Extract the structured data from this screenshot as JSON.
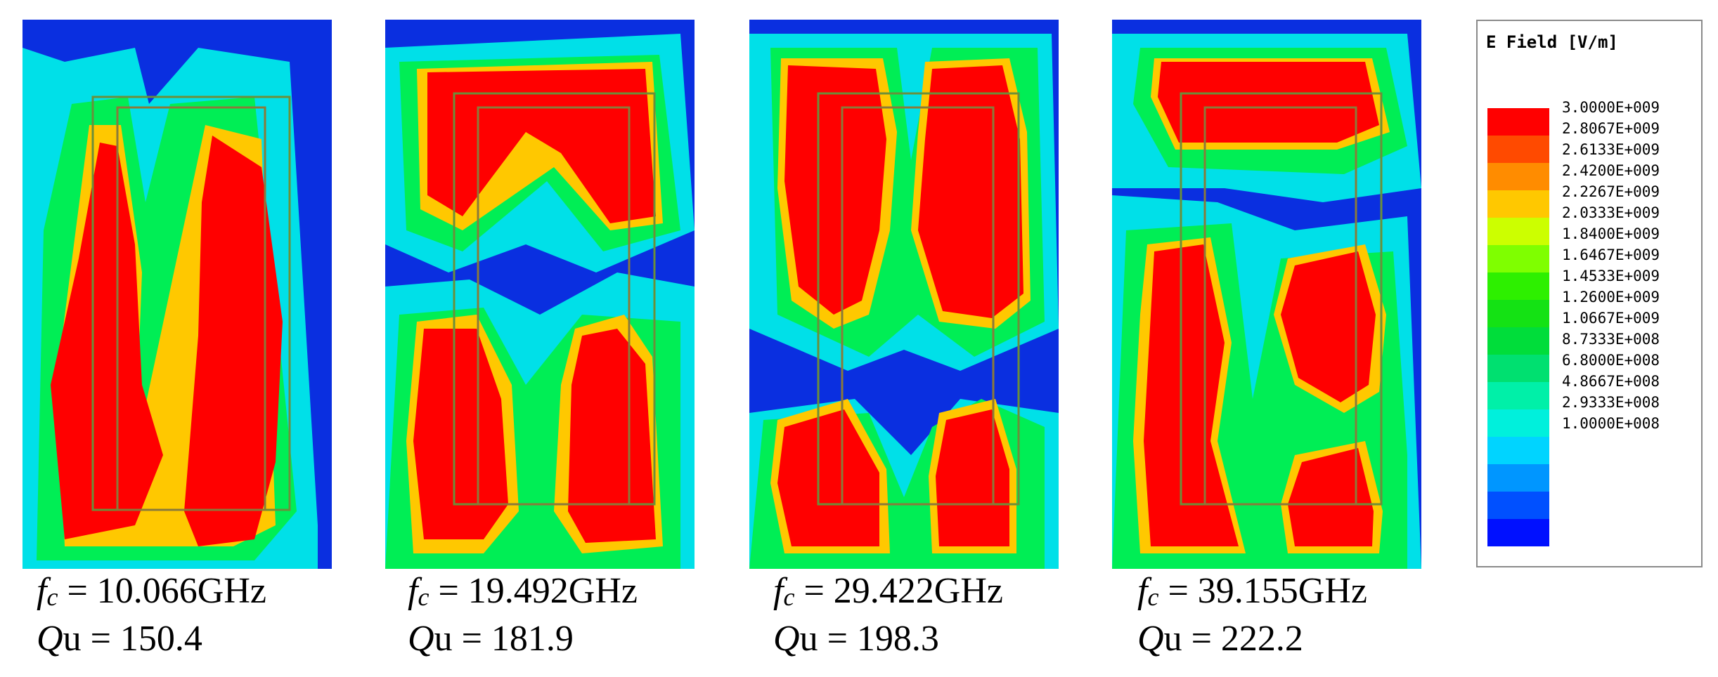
{
  "panels": [
    {
      "fc_label": "fc",
      "fc_value": "= 10.066GHz",
      "qu_label": "Qu",
      "qu_value": "= 150.4"
    },
    {
      "fc_label": "fc",
      "fc_value": "= 19.492GHz",
      "qu_label": "Qu",
      "qu_value": "= 181.9"
    },
    {
      "fc_label": "fc",
      "fc_value": "= 29.422GHz",
      "qu_label": "Qu",
      "qu_value": "= 198.3"
    },
    {
      "fc_label": "fc",
      "fc_value": "= 39.155GHz",
      "qu_label": "Qu",
      "qu_value": "= 222.2"
    }
  ],
  "legend": {
    "title": "E Field [V/m]",
    "labels": [
      "3.0000E+009",
      "2.8067E+009",
      "2.6133E+009",
      "2.4200E+009",
      "2.2267E+009",
      "2.0333E+009",
      "1.8400E+009",
      "1.6467E+009",
      "1.4533E+009",
      "1.2600E+009",
      "1.0667E+009",
      "8.7333E+008",
      "6.8000E+008",
      "4.8667E+008",
      "2.9333E+008",
      "1.0000E+008"
    ],
    "colors": [
      "#ff0000",
      "#ff4a00",
      "#ff8c00",
      "#ffc800",
      "#ccff00",
      "#7fff00",
      "#2df000",
      "#14e214",
      "#00dd3a",
      "#00e070",
      "#00f0a8",
      "#00f0dc",
      "#00d4ff",
      "#0096ff",
      "#0050ff",
      "#0010ff"
    ]
  }
}
